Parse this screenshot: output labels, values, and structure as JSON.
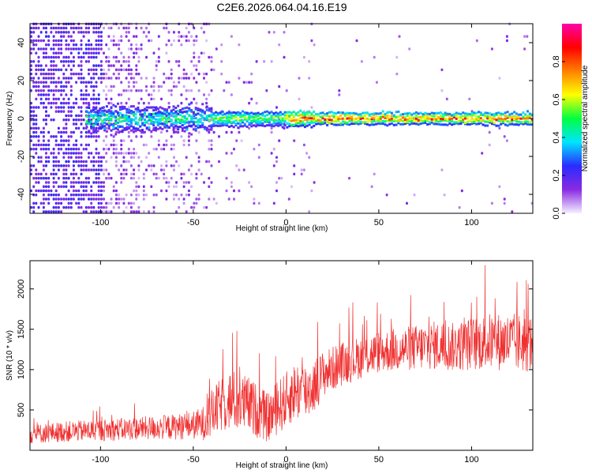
{
  "title": "C2E6.2026.064.04.16.E19",
  "chart_data": [
    {
      "type": "heatmap",
      "xlabel": "Height of straight line (km)",
      "ylabel": "Frequency (Hz)",
      "xlim": [
        -138,
        133
      ],
      "ylim": [
        -50,
        50
      ],
      "xticks": [
        -100,
        -50,
        0,
        50,
        100
      ],
      "yticks": [
        -40,
        -20,
        0,
        20,
        40
      ],
      "colorbar": {
        "label": "Normalized spectral amplitude",
        "range": [
          0.0,
          1.0
        ],
        "ticks": [
          0.0,
          0.2,
          0.4,
          0.6,
          0.8
        ],
        "tick_labels": [
          "0.0",
          "0.2",
          "0.4",
          "0.6",
          "0.8"
        ],
        "colormap": [
          "#f5f0ff",
          "#8a2be2",
          "#2a2bff",
          "#00e5ff",
          "#00ff40",
          "#ffff00",
          "#ff8000",
          "#ff0000",
          "#ff00aa"
        ]
      },
      "features": {
        "signal_frequency_hz": 0,
        "noisy_region_km": [
          -138,
          -40
        ],
        "strong_signal_region_km": [
          0,
          133
        ]
      }
    },
    {
      "type": "line",
      "xlabel": "Height of straight line (km)",
      "ylabel": "SNR (10 * v/v)",
      "xlim": [
        -138,
        133
      ],
      "ylim": [
        0,
        2350
      ],
      "xticks": [
        -100,
        -50,
        0,
        50,
        100
      ],
      "yticks": [
        500,
        1000,
        1500,
        2000
      ],
      "series": [
        {
          "color": "#f03030",
          "x": [
            -138,
            -120,
            -100,
            -80,
            -60,
            -50,
            -45,
            -40,
            -35,
            -30,
            -25,
            -20,
            -15,
            -10,
            -5,
            0,
            5,
            10,
            15,
            20,
            30,
            40,
            50,
            60,
            70,
            80,
            90,
            100,
            110,
            120,
            130
          ],
          "y": [
            200,
            230,
            250,
            270,
            290,
            310,
            330,
            450,
            560,
            620,
            600,
            560,
            480,
            400,
            520,
            620,
            740,
            720,
            800,
            950,
            1070,
            1150,
            1220,
            1250,
            1270,
            1300,
            1280,
            1320,
            1350,
            1340,
            1320
          ],
          "spread": [
            150,
            160,
            170,
            180,
            200,
            220,
            260,
            380,
            420,
            480,
            470,
            440,
            420,
            380,
            420,
            440,
            460,
            480,
            420,
            360,
            340,
            330,
            330,
            340,
            360,
            380,
            380,
            420,
            440,
            460,
            460
          ]
        }
      ]
    }
  ]
}
